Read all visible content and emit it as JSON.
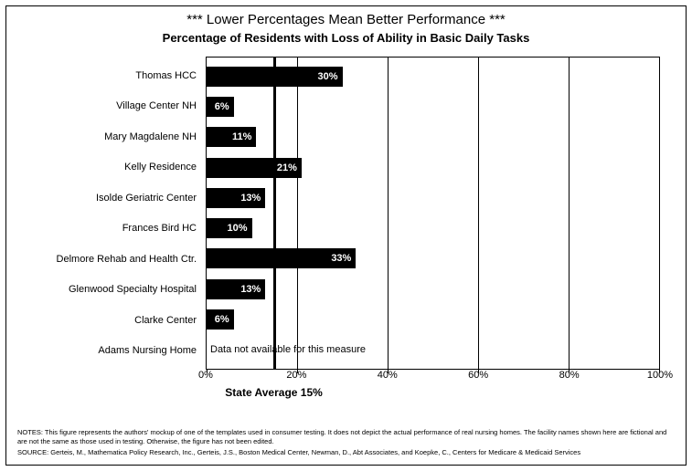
{
  "heading1": "*** Lower Percentages Mean Better Performance ***",
  "heading2": "Percentage of Residents with Loss of Ability in Basic Daily Tasks",
  "chart": {
    "type": "bar",
    "orientation": "horizontal",
    "xmin": 0,
    "xmax": 100,
    "xtick_step": 20,
    "xtick_labels": [
      "0%",
      "20%",
      "40%",
      "60%",
      "80%",
      "100%"
    ],
    "bar_color": "#000000",
    "value_color": "#ffffff",
    "grid_color": "#000000",
    "background_color": "#ffffff",
    "label_fontsize": 11,
    "value_fontsize": 11,
    "state_average": {
      "value": 15,
      "label": "State Average 15%",
      "line_width": 3
    },
    "na_text": "Data not available for this measure",
    "rows": [
      {
        "label": "Thomas HCC",
        "value": 30,
        "display": "30%"
      },
      {
        "label": "Village Center NH",
        "value": 6,
        "display": "6%"
      },
      {
        "label": "Mary Magdalene NH",
        "value": 11,
        "display": "11%"
      },
      {
        "label": "Kelly Residence",
        "value": 21,
        "display": "21%"
      },
      {
        "label": "Isolde Geriatric Center",
        "value": 13,
        "display": "13%"
      },
      {
        "label": "Frances Bird HC",
        "value": 10,
        "display": "10%"
      },
      {
        "label": "Delmore Rehab and Health Ctr.",
        "value": 33,
        "display": "33%"
      },
      {
        "label": "Glenwood Specialty Hospital",
        "value": 13,
        "display": "13%"
      },
      {
        "label": "Clarke Center",
        "value": 6,
        "display": "6%"
      },
      {
        "label": "Adams Nursing Home",
        "value": null,
        "display": null
      }
    ]
  },
  "notes_label": "NOTES:",
  "notes_text": " This figure represents the authors' mockup of one of the templates used in consumer testing. It does not depict the actual performance of real nursing homes. The facility names shown here are fictional and are not the same as those used in testing.  Otherwise, the figure has not been edited.",
  "source_label": "SOURCE:",
  "source_text": " Gerteis, M., Mathematica Policy Research, Inc., Gerteis, J.S., Boston Medical Center, Newman, D., Abt Associates, and Koepke, C., Centers for Medicare & Medicaid Services"
}
